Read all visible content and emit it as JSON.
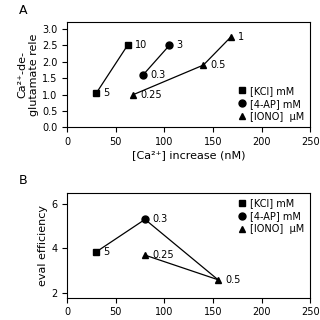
{
  "chart_data": [
    {
      "type": "line",
      "title": "A",
      "ylabel": "Ca²⁺-de-\nglutamate rele",
      "xlabel": "[Ca²⁺] increase (nM)",
      "xlim": [
        0,
        250
      ],
      "ylim": [
        0,
        3.2
      ],
      "xticks": [
        0,
        50,
        100,
        150,
        200,
        250
      ],
      "yticks": [
        {
          "value": 0,
          "label": "0.0"
        },
        0.5,
        {
          "value": 1,
          "label": "1.0"
        },
        1.5,
        {
          "value": 2,
          "label": "2.0"
        },
        2.5,
        {
          "value": 3,
          "label": "3.0"
        }
      ],
      "legend": "lower right",
      "color": "black",
      "series": [
        {
          "name": "[KCl] mM",
          "type": "line",
          "marker": "square",
          "x": [
            30,
            62
          ],
          "values": [
            1.05,
            2.5
          ],
          "annotations": [
            "5",
            "10"
          ]
        },
        {
          "name": "[4-AP] mM",
          "type": "line",
          "marker": "circle",
          "x": [
            78,
            105
          ],
          "values": [
            1.6,
            2.5
          ],
          "annotations": [
            "0.3",
            "3"
          ]
        },
        {
          "name": "[IONO]  μM",
          "type": "line",
          "marker": "triangle",
          "x": [
            68,
            140,
            168
          ],
          "values": [
            1.0,
            1.9,
            2.75
          ],
          "annotations": [
            "0.25",
            "0.5",
            "1"
          ]
        }
      ]
    },
    {
      "type": "line",
      "title": "B",
      "ylabel": "eval efficiency",
      "xlim": [
        0,
        250
      ],
      "ylim": [
        1.8,
        6.5
      ],
      "xticks": [
        0,
        50,
        100,
        150,
        200,
        250
      ],
      "yticks": [
        2,
        4,
        6
      ],
      "legend": "upper right",
      "color": "black",
      "series": [
        {
          "type": "line",
          "x": [
            30,
            80,
            155
          ],
          "values": [
            3.85,
            5.3,
            2.6
          ]
        },
        {
          "name": "[KCl] mM",
          "type": "scatter",
          "marker": "square",
          "x": [
            30
          ],
          "values": [
            3.85
          ],
          "annotations": [
            "5"
          ]
        },
        {
          "name": "[4-AP] mM",
          "type": "scatter",
          "marker": "circle",
          "x": [
            80
          ],
          "values": [
            5.3
          ],
          "annotations": [
            "0.3"
          ]
        },
        {
          "name": "[IONO]  μM",
          "type": "line",
          "marker": "triangle",
          "x": [
            80,
            155
          ],
          "values": [
            3.7,
            2.6
          ],
          "annotations": [
            "0.25",
            "0.5"
          ]
        }
      ]
    }
  ]
}
